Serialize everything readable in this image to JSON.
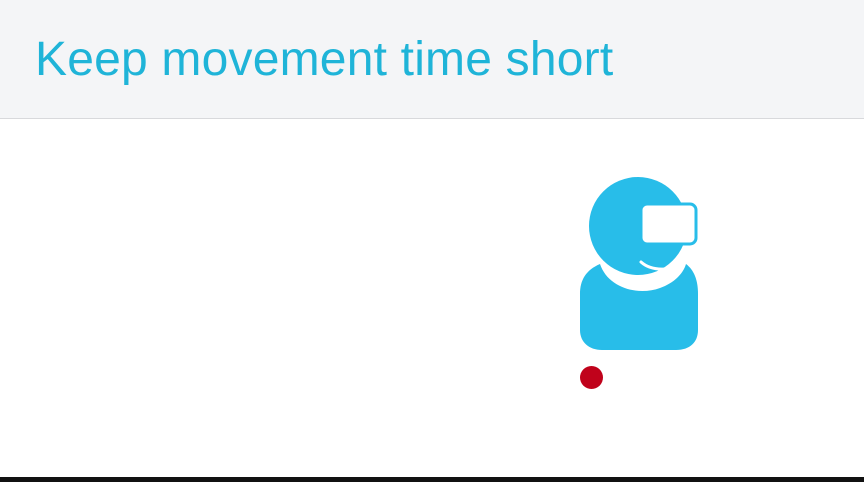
{
  "header": {
    "title": "Keep movement time short"
  },
  "illustration": {
    "figure_icon": "vr-headset-user-icon",
    "marker_icon": "red-dot-marker",
    "colors": {
      "header_background": "#f4f5f7",
      "title": "#1fb4d8",
      "figure": "#28bde9",
      "marker": "#c0021b",
      "background": "#ffffff"
    }
  }
}
